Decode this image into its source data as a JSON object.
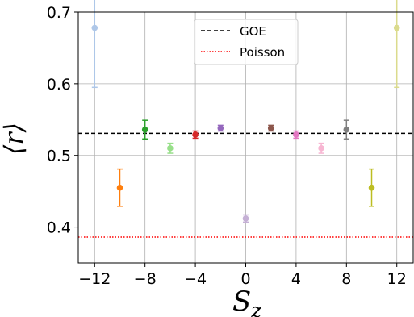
{
  "chart_data": {
    "type": "scatter",
    "xlabel_symbol": "S",
    "xlabel_subscript": "z",
    "ylabel": "⟨r⟩",
    "xlim": [
      -13.3,
      13.3
    ],
    "ylim": [
      0.35,
      0.7
    ],
    "x_ticks": [
      -12,
      -8,
      -4,
      0,
      4,
      8,
      12
    ],
    "x_tick_labels": [
      "−12",
      "−8",
      "−4",
      "0",
      "4",
      "8",
      "12"
    ],
    "y_ticks": [
      0.4,
      0.5,
      0.6,
      0.7
    ],
    "y_tick_labels": [
      "0.4",
      "0.5",
      "0.6",
      "0.7"
    ],
    "grid": true,
    "legend_position": "top-center",
    "points": [
      {
        "x": -12,
        "y": 0.678,
        "err": 0.083,
        "color": "#aec7e8"
      },
      {
        "x": -10,
        "y": 0.455,
        "err": 0.026,
        "color": "#ff7f0e"
      },
      {
        "x": -8,
        "y": 0.536,
        "err": 0.013,
        "color": "#2ca02c"
      },
      {
        "x": -6,
        "y": 0.51,
        "err": 0.007,
        "color": "#98df8a"
      },
      {
        "x": -4,
        "y": 0.529,
        "err": 0.005,
        "color": "#d62728"
      },
      {
        "x": -2,
        "y": 0.538,
        "err": 0.004,
        "color": "#9467bd"
      },
      {
        "x": 0,
        "y": 0.412,
        "err": 0.005,
        "color": "#c5b0d5"
      },
      {
        "x": 2,
        "y": 0.538,
        "err": 0.004,
        "color": "#8c564b"
      },
      {
        "x": 4,
        "y": 0.529,
        "err": 0.005,
        "color": "#e377c2"
      },
      {
        "x": 6,
        "y": 0.51,
        "err": 0.007,
        "color": "#f7b6d2"
      },
      {
        "x": 8,
        "y": 0.536,
        "err": 0.013,
        "color": "#7f7f7f"
      },
      {
        "x": 10,
        "y": 0.455,
        "err": 0.026,
        "color": "#bcbd22"
      },
      {
        "x": 12,
        "y": 0.678,
        "err": 0.083,
        "color": "#dbdb8d"
      }
    ],
    "reference_lines": [
      {
        "name": "GOE",
        "y": 0.5307,
        "style": "dashed",
        "color": "#000000"
      },
      {
        "name": "Poisson",
        "y": 0.386,
        "style": "dotted",
        "color": "#ff0000"
      }
    ]
  }
}
